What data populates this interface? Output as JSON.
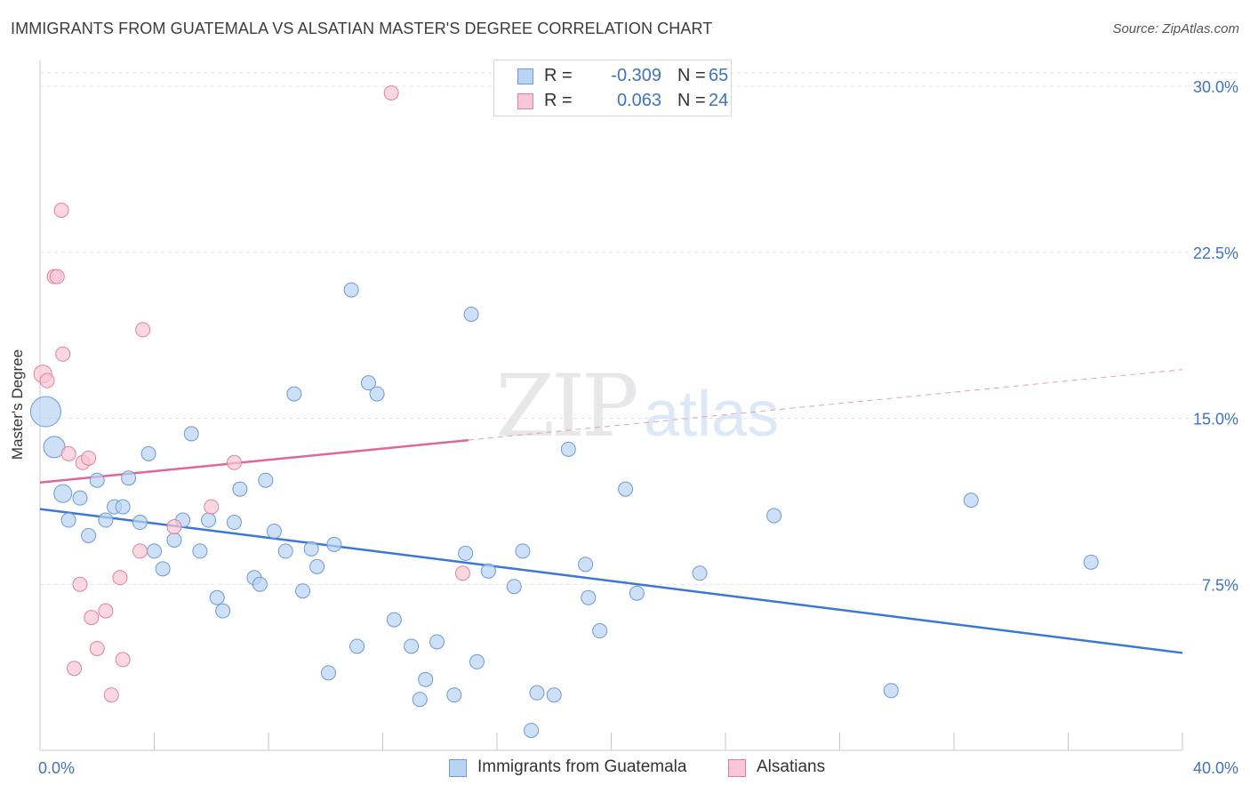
{
  "title": "IMMIGRANTS FROM GUATEMALA VS ALSATIAN MASTER'S DEGREE CORRELATION CHART",
  "source": "Source: ZipAtlas.com",
  "watermark": {
    "zip": "ZIP",
    "atlas": "atlas"
  },
  "legend": {
    "r_label": "R =",
    "n_label": "N =",
    "rows": [
      {
        "name": "Immigrants from Guatemala",
        "r": "-0.309",
        "n": "65",
        "fill": "#b9d3f2",
        "stroke": "#6a9ad8"
      },
      {
        "name": "Alsatians",
        "r": "0.063",
        "n": "24",
        "fill": "#f9c6d5",
        "stroke": "#e0809e"
      }
    ]
  },
  "chart_data": {
    "type": "scatter",
    "title": "IMMIGRANTS FROM GUATEMALA VS ALSATIAN MASTER'S DEGREE CORRELATION CHART",
    "xlabel": "",
    "ylabel": "Master's Degree",
    "xlim": [
      0,
      40
    ],
    "ylim": [
      0,
      31
    ],
    "x_tick_labels": [
      "0.0%",
      "40.0%"
    ],
    "y_ticks": [
      7.5,
      15.0,
      22.5,
      30.0
    ],
    "y_tick_labels": [
      "7.5%",
      "15.0%",
      "22.5%",
      "30.0%"
    ],
    "grid": "horizontal dashed",
    "legend_placement": "top-center",
    "series": [
      {
        "name": "Immigrants from Guatemala",
        "color": "#6a9ad8",
        "fill": "#b9d3f2",
        "trend": {
          "x": [
            0,
            40
          ],
          "y": [
            10.9,
            4.4
          ]
        },
        "points": [
          {
            "x": 0.2,
            "y": 15.3,
            "size": "xl"
          },
          {
            "x": 0.5,
            "y": 13.7,
            "size": "l"
          },
          {
            "x": 0.8,
            "y": 11.6,
            "size": "m"
          },
          {
            "x": 1.0,
            "y": 10.4
          },
          {
            "x": 1.4,
            "y": 11.4
          },
          {
            "x": 1.7,
            "y": 9.7
          },
          {
            "x": 2.0,
            "y": 12.2
          },
          {
            "x": 2.3,
            "y": 10.4
          },
          {
            "x": 2.6,
            "y": 11.0
          },
          {
            "x": 2.9,
            "y": 11.0
          },
          {
            "x": 3.1,
            "y": 12.3
          },
          {
            "x": 3.5,
            "y": 10.3
          },
          {
            "x": 3.8,
            "y": 13.4
          },
          {
            "x": 4.0,
            "y": 9.0
          },
          {
            "x": 4.3,
            "y": 8.2
          },
          {
            "x": 4.7,
            "y": 9.5
          },
          {
            "x": 5.0,
            "y": 10.4
          },
          {
            "x": 5.3,
            "y": 14.3
          },
          {
            "x": 5.6,
            "y": 9.0
          },
          {
            "x": 5.9,
            "y": 10.4
          },
          {
            "x": 6.2,
            "y": 6.9
          },
          {
            "x": 6.4,
            "y": 6.3
          },
          {
            "x": 6.8,
            "y": 10.3
          },
          {
            "x": 7.0,
            "y": 11.8
          },
          {
            "x": 7.5,
            "y": 7.8
          },
          {
            "x": 7.7,
            "y": 7.5
          },
          {
            "x": 7.9,
            "y": 12.2
          },
          {
            "x": 8.2,
            "y": 9.9
          },
          {
            "x": 8.6,
            "y": 9.0
          },
          {
            "x": 8.9,
            "y": 16.1
          },
          {
            "x": 9.2,
            "y": 7.2
          },
          {
            "x": 9.5,
            "y": 9.1
          },
          {
            "x": 9.7,
            "y": 8.3
          },
          {
            "x": 10.1,
            "y": 3.5
          },
          {
            "x": 10.3,
            "y": 9.3
          },
          {
            "x": 10.9,
            "y": 20.8
          },
          {
            "x": 11.1,
            "y": 4.7
          },
          {
            "x": 11.5,
            "y": 16.6
          },
          {
            "x": 11.8,
            "y": 16.1
          },
          {
            "x": 12.4,
            "y": 5.9
          },
          {
            "x": 13.0,
            "y": 4.7
          },
          {
            "x": 13.3,
            "y": 2.3
          },
          {
            "x": 13.5,
            "y": 3.2
          },
          {
            "x": 13.9,
            "y": 4.9
          },
          {
            "x": 14.5,
            "y": 2.5
          },
          {
            "x": 14.9,
            "y": 8.9
          },
          {
            "x": 15.1,
            "y": 19.7
          },
          {
            "x": 15.3,
            "y": 4.0
          },
          {
            "x": 15.7,
            "y": 8.1
          },
          {
            "x": 16.6,
            "y": 7.4
          },
          {
            "x": 16.9,
            "y": 9.0
          },
          {
            "x": 17.2,
            "y": 0.9
          },
          {
            "x": 17.4,
            "y": 2.6
          },
          {
            "x": 18.0,
            "y": 2.5
          },
          {
            "x": 18.5,
            "y": 13.6
          },
          {
            "x": 19.1,
            "y": 8.4
          },
          {
            "x": 19.2,
            "y": 6.9
          },
          {
            "x": 19.6,
            "y": 5.4
          },
          {
            "x": 20.5,
            "y": 11.8
          },
          {
            "x": 20.9,
            "y": 7.1
          },
          {
            "x": 23.1,
            "y": 8.0
          },
          {
            "x": 25.7,
            "y": 10.6
          },
          {
            "x": 29.8,
            "y": 2.7
          },
          {
            "x": 32.6,
            "y": 11.3
          },
          {
            "x": 36.8,
            "y": 8.5
          }
        ]
      },
      {
        "name": "Alsatians",
        "color": "#e0809e",
        "fill": "#f9c6d5",
        "trend": {
          "x": [
            0,
            40
          ],
          "y": [
            12.1,
            17.2
          ],
          "solid_until_x": 15.0
        },
        "points": [
          {
            "x": 0.1,
            "y": 17.0,
            "size": "m"
          },
          {
            "x": 0.25,
            "y": 16.7
          },
          {
            "x": 0.5,
            "y": 21.4
          },
          {
            "x": 0.6,
            "y": 21.4
          },
          {
            "x": 0.75,
            "y": 24.4
          },
          {
            "x": 0.8,
            "y": 17.9
          },
          {
            "x": 1.0,
            "y": 13.4
          },
          {
            "x": 1.2,
            "y": 3.7
          },
          {
            "x": 1.4,
            "y": 7.5
          },
          {
            "x": 1.5,
            "y": 13.0
          },
          {
            "x": 1.7,
            "y": 13.2
          },
          {
            "x": 1.8,
            "y": 6.0
          },
          {
            "x": 2.0,
            "y": 4.6
          },
          {
            "x": 2.3,
            "y": 6.3
          },
          {
            "x": 2.5,
            "y": 2.5
          },
          {
            "x": 2.8,
            "y": 7.8
          },
          {
            "x": 2.9,
            "y": 4.1
          },
          {
            "x": 3.5,
            "y": 9.0
          },
          {
            "x": 3.6,
            "y": 19.0
          },
          {
            "x": 4.7,
            "y": 10.1
          },
          {
            "x": 6.0,
            "y": 11.0
          },
          {
            "x": 6.8,
            "y": 13.0
          },
          {
            "x": 12.3,
            "y": 29.7
          },
          {
            "x": 14.8,
            "y": 8.0
          }
        ]
      }
    ]
  }
}
